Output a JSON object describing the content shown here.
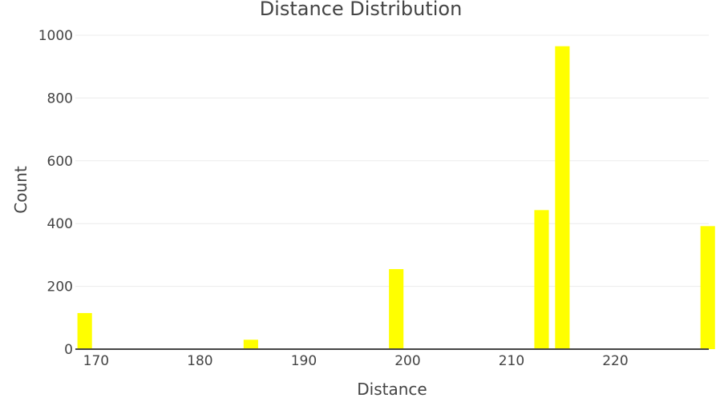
{
  "chart_data": {
    "type": "bar",
    "title": "Distance Distribution",
    "xlabel": "Distance",
    "ylabel": "Count",
    "bar_color": "#ffff00",
    "grid": true,
    "xlim": [
      168,
      229
    ],
    "ylim": [
      0,
      1000
    ],
    "x_ticks": [
      170,
      180,
      190,
      200,
      210,
      220
    ],
    "y_ticks": [
      0,
      200,
      400,
      600,
      800,
      1000
    ],
    "bin_width": 1.4,
    "x": [
      168.9,
      184.9,
      198.9,
      212.9,
      214.9,
      228.9
    ],
    "values": [
      115,
      30,
      255,
      443,
      965,
      392
    ]
  }
}
